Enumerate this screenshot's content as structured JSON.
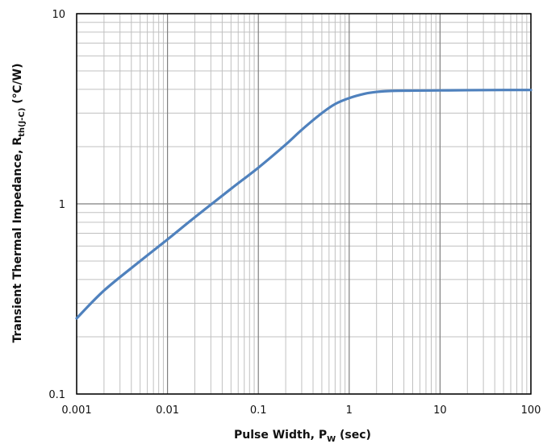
{
  "chart_data": {
    "type": "line",
    "title": "",
    "xlabel": {
      "main": "Pulse Width, P",
      "sub": "W",
      "suffix": " (sec)"
    },
    "ylabel": {
      "main": "Transient Thermal Impedance, R",
      "sub": "th(J-C)",
      "suffix": " (℃/W)"
    },
    "x_scale": "log",
    "y_scale": "log",
    "xlim": [
      0.001,
      100
    ],
    "ylim": [
      0.1,
      10
    ],
    "x_ticks": [
      0.001,
      0.01,
      0.1,
      1,
      10,
      100
    ],
    "x_tick_labels": [
      "0.001",
      "0.01",
      "0.1",
      "1",
      "10",
      "100"
    ],
    "y_ticks": [
      0.1,
      1,
      10
    ],
    "y_tick_labels": [
      "0.1",
      "1",
      "10"
    ],
    "grid": true,
    "legend": false,
    "colors": {
      "line": "#4f81bd",
      "grid": "#c0c0c0",
      "frame": "#000000"
    },
    "series": [
      {
        "x": [
          0.001,
          0.002,
          0.005,
          0.01,
          0.02,
          0.05,
          0.1,
          0.2,
          0.3,
          0.5,
          0.7,
          1,
          1.5,
          2,
          3,
          5,
          10,
          20,
          50,
          100
        ],
        "y": [
          0.25,
          0.35,
          0.5,
          0.65,
          0.85,
          1.2,
          1.55,
          2.05,
          2.45,
          3.0,
          3.35,
          3.6,
          3.8,
          3.88,
          3.93,
          3.94,
          3.95,
          3.96,
          3.97,
          3.97
        ]
      }
    ]
  }
}
